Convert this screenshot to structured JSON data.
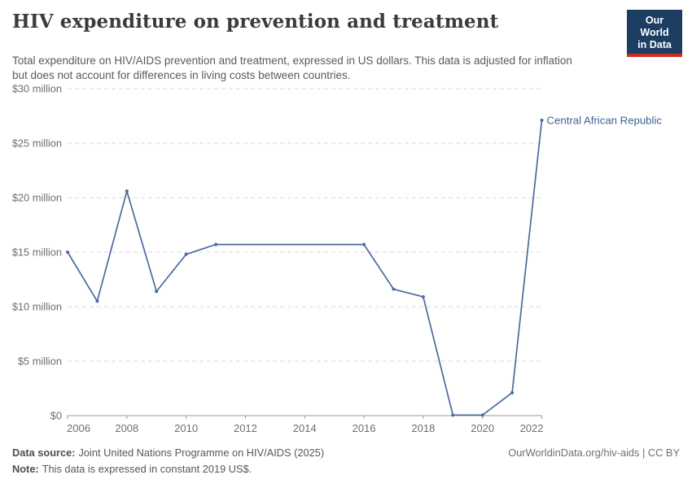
{
  "header": {
    "title": "HIV expenditure on prevention and treatment",
    "subtitle": "Total expenditure on HIV/AIDS prevention and treatment, expressed in US dollars. This data is adjusted for inflation but does not account for differences in living costs between countries.",
    "logo": {
      "line1": "Our World",
      "line2": "in Data",
      "bg_color": "#1d3d63",
      "accent_color": "#cf2d24"
    }
  },
  "chart_data": {
    "type": "line",
    "title": "HIV expenditure on prevention and treatment",
    "unit": "US$ million (constant 2019 US$)",
    "x": [
      2006,
      2007,
      2008,
      2009,
      2010,
      2011,
      2016,
      2017,
      2018,
      2019,
      2020,
      2021,
      2022
    ],
    "series": [
      {
        "name": "Central African Republic",
        "values": [
          15.0,
          10.5,
          20.6,
          11.4,
          14.8,
          15.7,
          15.7,
          11.6,
          10.9,
          0.05,
          0.05,
          2.1,
          27.1
        ]
      }
    ],
    "xlim": [
      2006,
      2022
    ],
    "ylim": [
      0,
      30
    ],
    "x_ticks": [
      2006,
      2008,
      2010,
      2012,
      2014,
      2016,
      2018,
      2020,
      2022
    ],
    "y_ticks": [
      {
        "value": 0,
        "label": "$0"
      },
      {
        "value": 5,
        "label": "$5 million"
      },
      {
        "value": 10,
        "label": "$10 million"
      },
      {
        "value": 15,
        "label": "$15 million"
      },
      {
        "value": 20,
        "label": "$20 million"
      },
      {
        "value": 25,
        "label": "$25 million"
      },
      {
        "value": 30,
        "label": "$30 million"
      }
    ],
    "grid": "horizontal-dashed",
    "legend_position": "end-of-line-label",
    "colors": {
      "line": "#4c6a9c",
      "end_label": "#3d6293",
      "grid": "#d9d9d9",
      "axis": "#999999",
      "tick_text": "#6e6e6e"
    }
  },
  "footer": {
    "data_source_label": "Data source:",
    "data_source_text": "Joint United Nations Programme on HIV/AIDS (2025)",
    "note_label": "Note:",
    "note_text": "This data is expressed in constant 2019 US$.",
    "attribution": "OurWorldinData.org/hiv-aids | CC BY"
  }
}
